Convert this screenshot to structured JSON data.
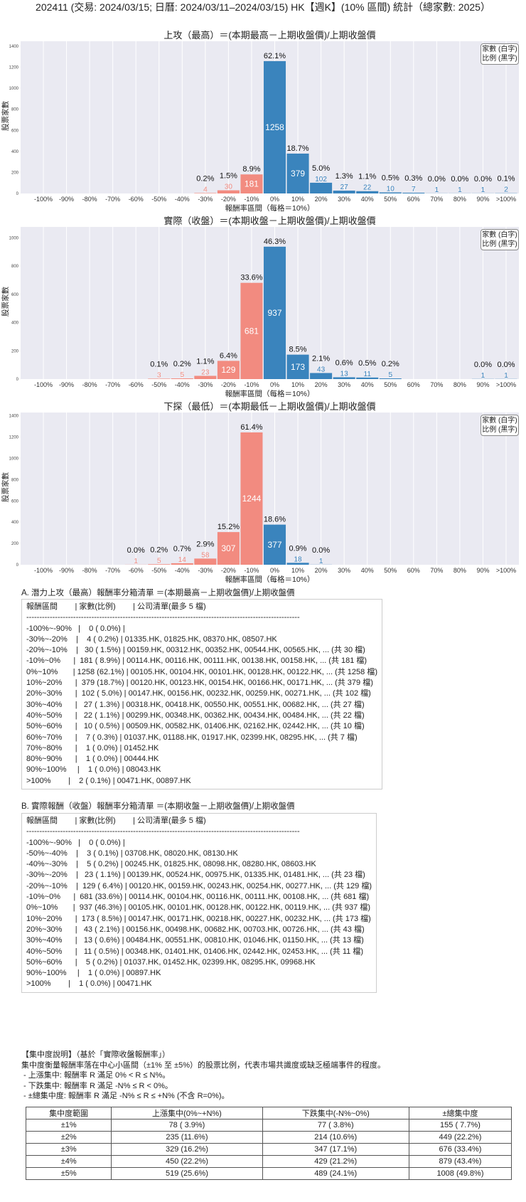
{
  "main_title": "202411 (交易: 2024/03/15; 日曆: 2024/03/11–2024/03/15) HK【週K】(10% 區間) 統計（總家數: 2025）",
  "colors": {
    "negative": "#f28b80",
    "positive": "#3a84bd",
    "plot_bg": "#eaeaf2",
    "grid": "#ffffff"
  },
  "chart_data": [
    {
      "type": "bar",
      "title": "上攻（最高）＝(本期最高－上期收盤價)/上期收盤價",
      "xlabel": "報酬率區間（每格＝10%）",
      "ylabel": "股票家數",
      "legend": [
        "家數 (白字)",
        "比例 (黑字)"
      ],
      "legend_position": "top-right",
      "categories": [
        "-100%",
        "-90%",
        "-80%",
        "-70%",
        "-60%",
        "-50%",
        "-40%",
        "-30%",
        "-20%",
        "-10%",
        "0%",
        "10%",
        "20%",
        "30%",
        "40%",
        "50%",
        "60%",
        "70%",
        "80%",
        "90%",
        ">100%"
      ],
      "values": [
        0,
        0,
        0,
        0,
        0,
        0,
        0,
        4,
        30,
        181,
        1258,
        379,
        102,
        27,
        22,
        10,
        7,
        1,
        1,
        1,
        2
      ],
      "percent_labels": [
        "",
        "",
        "",
        "",
        "",
        "",
        "",
        "0.2%",
        "1.5%",
        "8.9%",
        "62.1%",
        "18.7%",
        "5.0%",
        "1.3%",
        "1.1%",
        "0.5%",
        "0.3%",
        "0.0%",
        "0.0%",
        "0.0%",
        "0.1%"
      ],
      "ylim": [
        0,
        1447
      ],
      "yticks": [
        0,
        200,
        400,
        600,
        800,
        1000,
        1200,
        1400
      ],
      "grid": "vertical"
    },
    {
      "type": "bar",
      "title": "實際（收盤）＝(本期收盤－上期收盤價)/上期收盤價",
      "xlabel": "報酬率區間（每格＝10%）",
      "ylabel": "股票家數",
      "legend": [
        "家數 (白字)",
        "比例 (黑字)"
      ],
      "legend_position": "top-right",
      "categories": [
        "-100%",
        "-90%",
        "-80%",
        "-70%",
        "-60%",
        "-50%",
        "-40%",
        "-30%",
        "-20%",
        "-10%",
        "0%",
        "10%",
        "20%",
        "30%",
        "40%",
        "50%",
        "60%",
        "70%",
        "80%",
        "90%",
        ">100%"
      ],
      "values": [
        0,
        0,
        0,
        0,
        0,
        3,
        5,
        23,
        129,
        681,
        937,
        173,
        43,
        13,
        11,
        5,
        0,
        0,
        0,
        1,
        1
      ],
      "percent_labels": [
        "",
        "",
        "",
        "",
        "",
        "0.1%",
        "0.2%",
        "1.1%",
        "6.4%",
        "33.6%",
        "46.3%",
        "8.5%",
        "2.1%",
        "0.6%",
        "0.5%",
        "0.2%",
        "",
        "",
        "",
        "0.0%",
        "0.0%"
      ],
      "ylim": [
        0,
        1077
      ],
      "yticks": [
        0,
        200,
        400,
        600,
        800,
        1000
      ],
      "grid": "vertical"
    },
    {
      "type": "bar",
      "title": "下探（最低）＝(本期最低－上期收盤價)/上期收盤價",
      "xlabel": "報酬率區間（每格＝10%）",
      "ylabel": "股票家數",
      "legend": [
        "家數 (白字)",
        "比例 (黑字)"
      ],
      "legend_position": "top-right",
      "categories": [
        "-100%",
        "-90%",
        "-80%",
        "-70%",
        "-60%",
        "-50%",
        "-40%",
        "-30%",
        "-20%",
        "-10%",
        "0%",
        "10%",
        "20%",
        "30%",
        "40%",
        "50%",
        "60%",
        "70%",
        "80%",
        "90%",
        ">100%"
      ],
      "values": [
        0,
        0,
        0,
        0,
        1,
        5,
        14,
        58,
        307,
        1244,
        377,
        18,
        1,
        0,
        0,
        0,
        0,
        0,
        0,
        0,
        0
      ],
      "percent_labels": [
        "",
        "",
        "",
        "",
        "0.0%",
        "0.2%",
        "0.7%",
        "2.9%",
        "15.2%",
        "61.4%",
        "18.6%",
        "0.9%",
        "0.0%",
        "",
        "",
        "",
        "",
        "",
        "",
        "",
        ""
      ],
      "ylim": [
        0,
        1431
      ],
      "yticks": [
        0,
        200,
        400,
        600,
        800,
        1000,
        1200,
        1400
      ],
      "grid": "vertical"
    }
  ],
  "list_a": {
    "heading": "A. 潛力上攻（最高）報酬率分箱清單 ＝(本期最高－上期收盤價)/上期收盤價",
    "lines": [
      "報酬區間        | 家數(比例)        | 公司清單(最多 5 檔)",
      "---------------------------------------------------------------------------------------------------------",
      "-100%~-90%   |    0 ( 0.0%) |",
      "-30%~-20%    |    4 ( 0.2%) | 01335.HK, 01825.HK, 08370.HK, 08507.HK",
      "-20%~-10%    |   30 ( 1.5%) | 00159.HK, 00312.HK, 00352.HK, 00544.HK, 00565.HK, ... (共 30 檔)",
      "-10%~0%      |  181 ( 8.9%) | 00114.HK, 00116.HK, 00111.HK, 00138.HK, 00158.HK, ... (共 181 檔)",
      "0%~10%       | 1258 (62.1%) | 00105.HK, 00104.HK, 00101.HK, 00128.HK, 00122.HK, ... (共 1258 檔)",
      "10%~20%      |  379 (18.7%) | 00120.HK, 00123.HK, 00154.HK, 00166.HK, 00171.HK, ... (共 379 檔)",
      "20%~30%      |  102 ( 5.0%) | 00147.HK, 00156.HK, 00232.HK, 00259.HK, 00271.HK, ... (共 102 檔)",
      "30%~40%      |   27 ( 1.3%) | 00318.HK, 00418.HK, 00550.HK, 00551.HK, 00682.HK, ... (共 27 檔)",
      "40%~50%      |   22 ( 1.1%) | 00299.HK, 00348.HK, 00362.HK, 00434.HK, 00484.HK, ... (共 22 檔)",
      "50%~60%      |   10 ( 0.5%) | 00509.HK, 00582.HK, 01406.HK, 02162.HK, 02442.HK, ... (共 10 檔)",
      "60%~70%      |    7 ( 0.3%) | 01037.HK, 01188.HK, 01917.HK, 02399.HK, 08295.HK, ... (共 7 檔)",
      "70%~80%      |    1 ( 0.0%) | 01452.HK",
      "80%~90%      |    1 ( 0.0%) | 00444.HK",
      "90%~100%     |    1 ( 0.0%) | 08043.HK",
      ">100%        |    2 ( 0.1%) | 00471.HK, 00897.HK"
    ]
  },
  "list_b": {
    "heading": "B. 實際報酬（收盤）報酬率分箱清單 ＝(本期收盤－上期收盤價)/上期收盤價",
    "lines": [
      "報酬區間        | 家數(比例)        | 公司清單(最多 5 檔)",
      "---------------------------------------------------------------------------------------------------------",
      "-100%~-90%   |    0 ( 0.0%) |",
      "-50%~-40%    |    3 ( 0.1%) | 03708.HK, 08020.HK, 08130.HK",
      "-40%~-30%    |    5 ( 0.2%) | 00245.HK, 01825.HK, 08098.HK, 08280.HK, 08603.HK",
      "-30%~-20%    |   23 ( 1.1%) | 00139.HK, 00524.HK, 00975.HK, 01335.HK, 01481.HK, ... (共 23 檔)",
      "-20%~-10%    |  129 ( 6.4%) | 00120.HK, 00159.HK, 00243.HK, 00254.HK, 00277.HK, ... (共 129 檔)",
      "-10%~0%      |  681 (33.6%) | 00114.HK, 00104.HK, 00116.HK, 00111.HK, 00108.HK, ... (共 681 檔)",
      "0%~10%       |  937 (46.3%) | 00105.HK, 00101.HK, 00128.HK, 00122.HK, 00119.HK, ... (共 937 檔)",
      "10%~20%      |  173 ( 8.5%) | 00147.HK, 00171.HK, 00218.HK, 00227.HK, 00232.HK, ... (共 173 檔)",
      "20%~30%      |   43 ( 2.1%) | 00156.HK, 00498.HK, 00682.HK, 00703.HK, 00726.HK, ... (共 43 檔)",
      "30%~40%      |   13 ( 0.6%) | 00484.HK, 00551.HK, 00810.HK, 01046.HK, 01150.HK, ... (共 13 檔)",
      "40%~50%      |   11 ( 0.5%) | 00348.HK, 01401.HK, 01406.HK, 02442.HK, 02453.HK, ... (共 11 檔)",
      "50%~60%      |    5 ( 0.2%) | 01037.HK, 01452.HK, 02399.HK, 08295.HK, 09968.HK",
      "90%~100%     |    1 ( 0.0%) | 00897.HK",
      ">100%        |    1 ( 0.0%) | 00471.HK"
    ]
  },
  "notes": {
    "lines": [
      "【集中度說明】（基於「實際收盤報酬率」）",
      "集中度衡量報酬率落在中心小區間（±1% 至 ±5%）的股票比例，代表市場共識度或缺乏極端事件的程度。",
      " - 上漲集中: 報酬率 R 滿足 0% < R ≤ N%。",
      " - 下跌集中: 報酬率 R 滿足 -N% ≤ R < 0%。",
      " - ±總集中度: 報酬率 R 滿足 -N% ≤ R ≤ +N% (不含 R=0%)。"
    ]
  },
  "concentration_table": {
    "headers": [
      "集中度範圍",
      "上漲集中(0%~+N%)",
      "下跌集中(-N%~0%)",
      "±總集中度"
    ],
    "rows": [
      [
        "±1%",
        "78 ( 3.9%)",
        "77 ( 3.8%)",
        "155 ( 7.7%)"
      ],
      [
        "±2%",
        "235 (11.6%)",
        "214 (10.6%)",
        "449 (22.2%)"
      ],
      [
        "±3%",
        "329 (16.2%)",
        "347 (17.1%)",
        "676 (33.4%)"
      ],
      [
        "±4%",
        "450 (22.2%)",
        "429 (21.2%)",
        "879 (43.4%)"
      ],
      [
        "±5%",
        "519 (25.6%)",
        "489 (24.1%)",
        "1008 (49.8%)"
      ]
    ]
  }
}
